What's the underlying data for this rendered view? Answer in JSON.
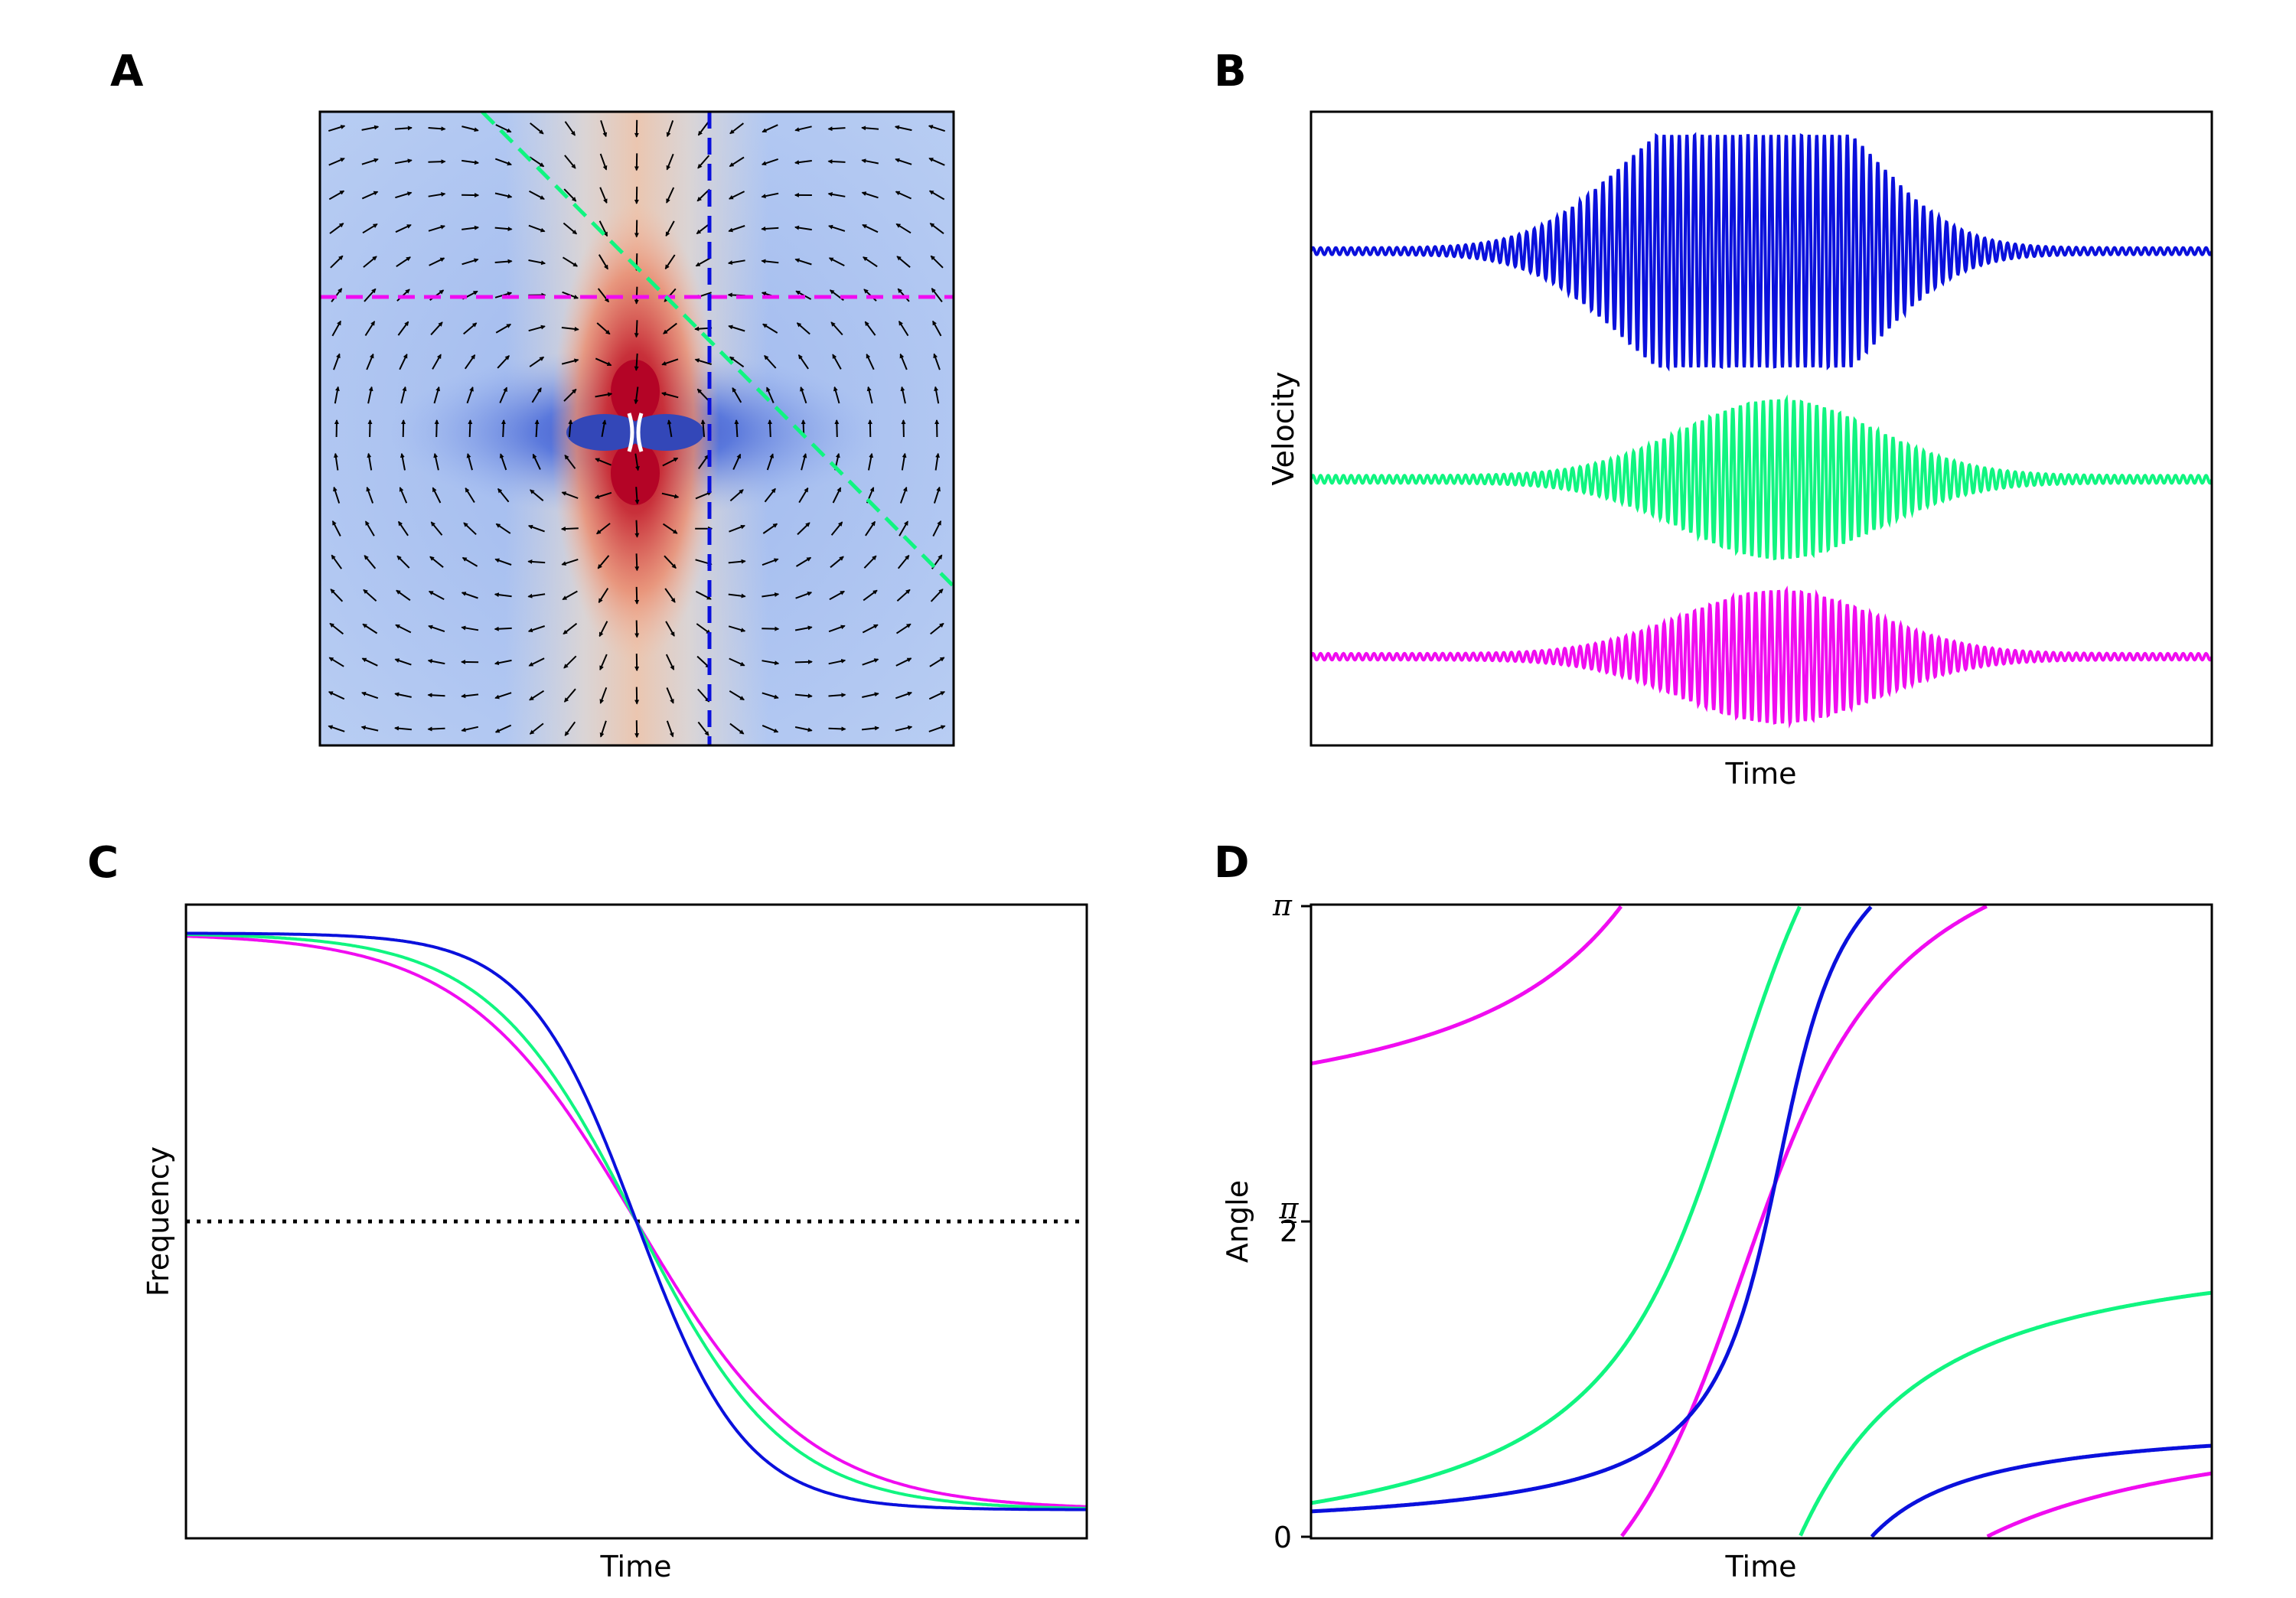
{
  "colors": {
    "blue": "#0a10dc",
    "green": "#10f580",
    "magenta": "#f00cf0",
    "black": "#000000"
  },
  "panels": {
    "A": {
      "letter": "A"
    },
    "B": {
      "letter": "B",
      "xlabel": "Time",
      "ylabel": "Velocity"
    },
    "C": {
      "letter": "C",
      "xlabel": "Time",
      "ylabel": "Frequency"
    },
    "D": {
      "letter": "D",
      "xlabel": "Time",
      "ylabel": "Angle",
      "yticks": {
        "top": "π",
        "mid_num": "π",
        "mid_den": "2",
        "bottom": "0"
      }
    }
  },
  "chart_data": [
    {
      "panel": "A",
      "type": "heatmap",
      "description": "vector field with colored magnitude map",
      "colormap": "coolwarm",
      "lines": [
        {
          "color": "magenta",
          "style": "dashed",
          "orientation": "horizontal"
        },
        {
          "color": "blue",
          "style": "dashed",
          "orientation": "vertical"
        },
        {
          "color": "green",
          "style": "dashed",
          "orientation": "diagonal"
        }
      ]
    },
    {
      "panel": "B",
      "type": "line",
      "xlabel": "Time",
      "ylabel": "Velocity",
      "series": [
        {
          "color": "blue",
          "offset": 0.78,
          "peak_amplitude": 0.18,
          "envelope": "double-hump"
        },
        {
          "color": "green",
          "offset": 0.42,
          "peak_amplitude": 0.12,
          "envelope": "single-peak"
        },
        {
          "color": "magenta",
          "offset": 0.14,
          "peak_amplitude": 0.1,
          "envelope": "single-peak"
        }
      ]
    },
    {
      "panel": "C",
      "type": "line",
      "xlabel": "Time",
      "ylabel": "Frequency",
      "reference_line": {
        "style": "dotted",
        "color": "black",
        "y": 0.5
      },
      "series": [
        {
          "color": "blue",
          "steepness": 15
        },
        {
          "color": "green",
          "steepness": 11
        },
        {
          "color": "magenta",
          "steepness": 9.5
        }
      ]
    },
    {
      "panel": "D",
      "type": "line",
      "xlabel": "Time",
      "ylabel": "Angle",
      "yticks": [
        "0",
        "π/2",
        "π"
      ],
      "ylim": [
        0,
        3.14159
      ],
      "series": [
        {
          "color": "blue"
        },
        {
          "color": "green"
        },
        {
          "color": "magenta"
        }
      ]
    }
  ]
}
